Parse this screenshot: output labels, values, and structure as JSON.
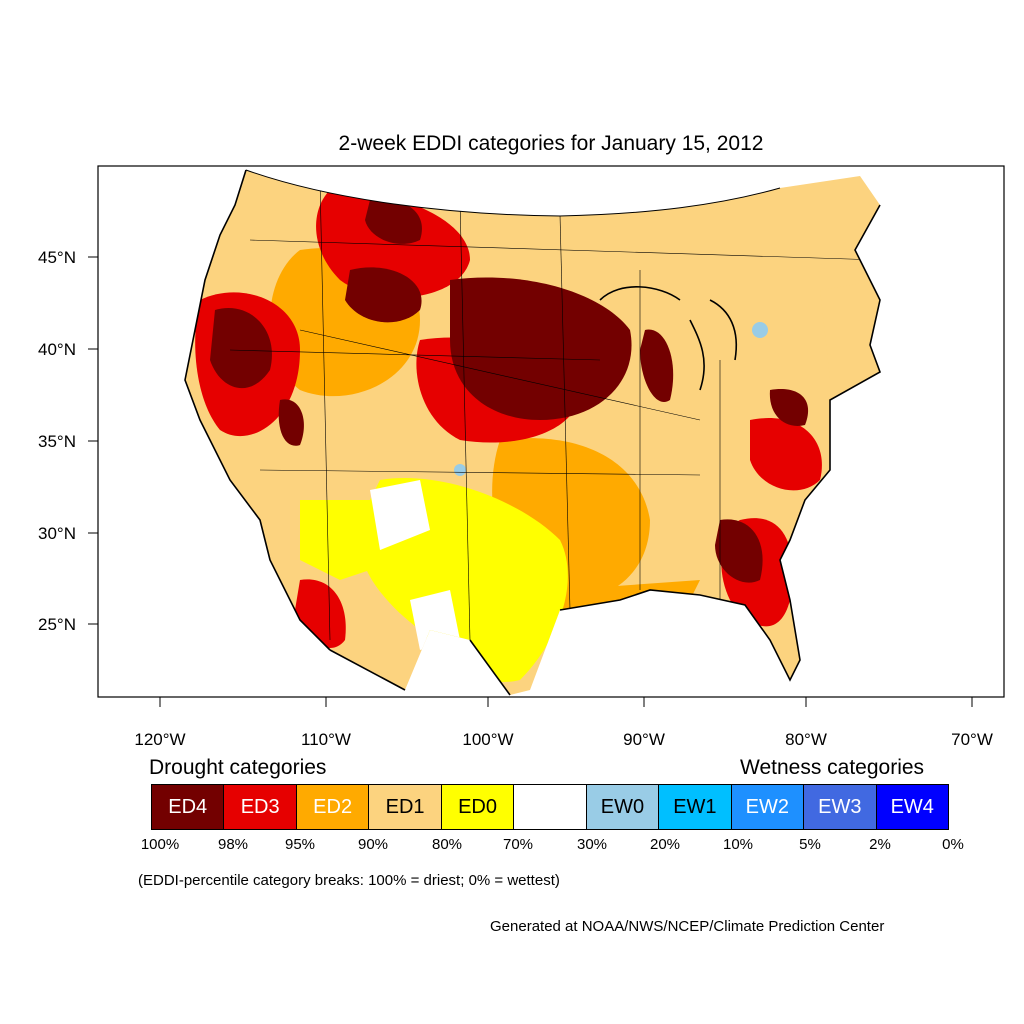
{
  "title": "2-week EDDI categories for January 15, 2012",
  "map": {
    "lat_ticks": [
      "45°N",
      "40°N",
      "35°N",
      "30°N",
      "25°N"
    ],
    "lon_ticks": [
      "120°W",
      "110°W",
      "100°W",
      "90°W",
      "80°W",
      "70°W"
    ]
  },
  "legend": {
    "drought_heading": "Drought categories",
    "wetness_heading": "Wetness categories",
    "categories": [
      {
        "label": "ED4",
        "color": "#730000",
        "text_color": "#ffffff"
      },
      {
        "label": "ED3",
        "color": "#e60000",
        "text_color": "#ffffff"
      },
      {
        "label": "ED2",
        "color": "#ffaa00",
        "text_color": "#ffffff"
      },
      {
        "label": "ED1",
        "color": "#fcd37f",
        "text_color": "#000000"
      },
      {
        "label": "ED0",
        "color": "#ffff00",
        "text_color": "#000000"
      },
      {
        "label": "",
        "color": "#ffffff",
        "text_color": "#000000"
      },
      {
        "label": "EW0",
        "color": "#99cce6",
        "text_color": "#000000"
      },
      {
        "label": "EW1",
        "color": "#00bfff",
        "text_color": "#000000"
      },
      {
        "label": "EW2",
        "color": "#1e90ff",
        "text_color": "#ffffff"
      },
      {
        "label": "EW3",
        "color": "#4169e1",
        "text_color": "#ffffff"
      },
      {
        "label": "EW4",
        "color": "#0000ff",
        "text_color": "#ffffff"
      }
    ],
    "breaks": [
      "100%",
      "98%",
      "95%",
      "90%",
      "80%",
      "70%",
      "30%",
      "20%",
      "10%",
      "5%",
      "2%",
      "0%"
    ]
  },
  "note": "(EDDI-percentile category breaks: 100% = driest; 0% = wettest)",
  "credit": "Generated at NOAA/NWS/NCEP/Climate Prediction Center"
}
